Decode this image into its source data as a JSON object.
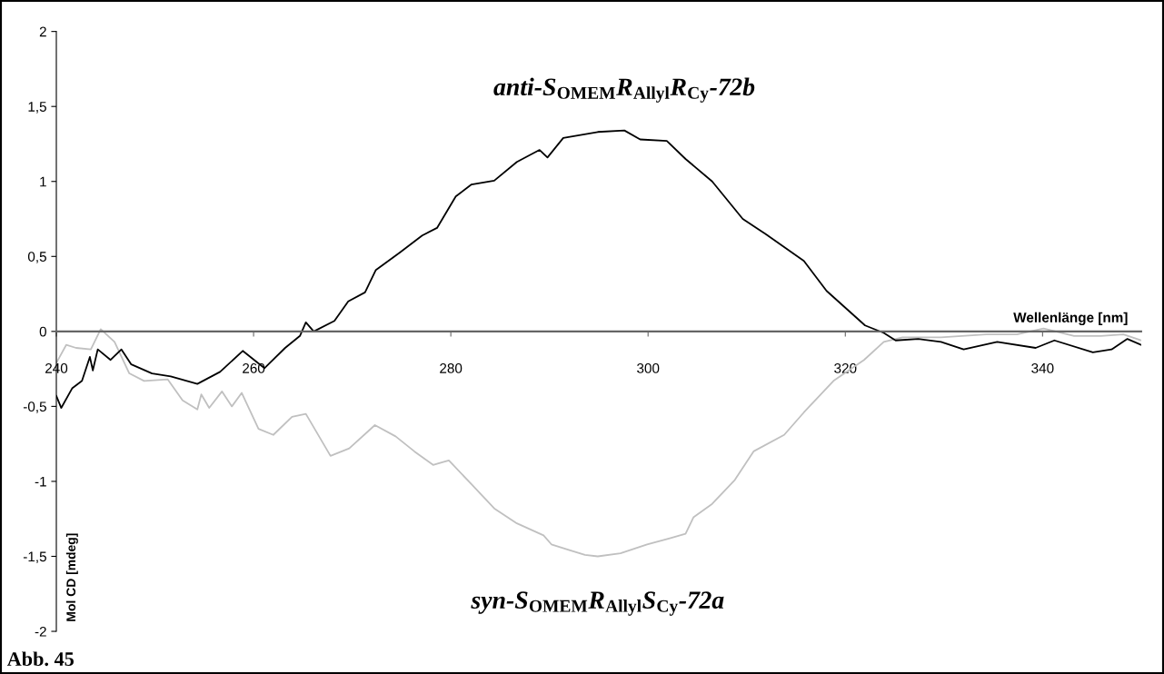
{
  "chart_data": {
    "type": "line",
    "xlabel": "Wellenlänge [nm]",
    "ylabel": "Mol CD [mdeg]",
    "annotations": [
      "Abb. 45"
    ],
    "xlim": [
      240,
      350
    ],
    "xticks": [
      240,
      260,
      280,
      300,
      320,
      340
    ],
    "ylim": [
      -2,
      2
    ],
    "yticks": [
      {
        "value": -2,
        "label": "-2"
      },
      {
        "value": -1.5,
        "label": "-1,5"
      },
      {
        "value": -1,
        "label": "-1"
      },
      {
        "value": -0.5,
        "label": "-0,5"
      },
      0,
      {
        "value": 0.5,
        "label": "0,5"
      },
      1,
      {
        "value": 1.5,
        "label": "1,5"
      },
      2
    ],
    "grid": false,
    "legend": false,
    "marker": "none",
    "line_style": "solid",
    "series": [
      {
        "name": "syn-S$_{OMEM}$R$_{Allyl}$S$_{Cy}$-72a",
        "color": "#c0c0c0",
        "x": [
          240,
          241,
          242,
          243.5,
          244.5,
          245.9,
          247.4,
          248.9,
          251.3,
          252.8,
          254.3,
          254.7,
          255.5,
          256.8,
          257.8,
          258.8,
          260.5,
          262,
          263.9,
          265.3,
          267.8,
          269.7,
          272.3,
          274.4,
          276.3,
          278.2,
          279.8,
          282.1,
          284.4,
          286.7,
          289.4,
          290.2,
          292.1,
          293.6,
          294.9,
          297.2,
          299.9,
          302.2,
          303.8,
          304.6,
          306.5,
          308.8,
          310.7,
          313.8,
          315.8,
          318.8,
          321.9,
          323.9,
          325.8,
          329.7,
          334.3,
          337.4,
          340.1,
          343.2,
          345.9,
          348.2,
          350
        ],
        "values": [
          -0.21,
          -0.09,
          -0.11,
          -0.12,
          0.015,
          -0.07,
          -0.28,
          -0.33,
          -0.32,
          -0.46,
          -0.52,
          -0.42,
          -0.51,
          -0.4,
          -0.5,
          -0.41,
          -0.65,
          -0.69,
          -0.57,
          -0.55,
          -0.83,
          -0.78,
          -0.625,
          -0.7,
          -0.8,
          -0.89,
          -0.86,
          -1.02,
          -1.18,
          -1.28,
          -1.36,
          -1.42,
          -1.46,
          -1.49,
          -1.5,
          -1.48,
          -1.42,
          -1.38,
          -1.35,
          -1.24,
          -1.15,
          -0.99,
          -0.8,
          -0.69,
          -0.54,
          -0.33,
          -0.19,
          -0.07,
          -0.04,
          -0.04,
          -0.02,
          -0.02,
          0.02,
          -0.03,
          -0.03,
          -0.02,
          -0.06
        ]
      },
      {
        "name": "anti-S$_{OMEM}$R$_{Allyl}$R$_{Cy}$-72b",
        "color": "#000000",
        "x": [
          240,
          240.5,
          241.6,
          242.6,
          243.4,
          243.7,
          244.2,
          245.5,
          246.6,
          247.6,
          249.7,
          251.6,
          254.3,
          256.6,
          258.9,
          261.1,
          263.2,
          264.7,
          265.3,
          266.1,
          268.2,
          269.6,
          271.3,
          272.4,
          274.8,
          277.1,
          278.6,
          280.5,
          282.1,
          284.4,
          286.7,
          289,
          289.8,
          291.4,
          294.9,
          297.6,
          299.2,
          301.9,
          303.8,
          306.5,
          309.6,
          311.9,
          315.8,
          318.1,
          322,
          323.9,
          325.1,
          327.4,
          329.7,
          332,
          335.4,
          339.3,
          341.2,
          345.1,
          347,
          348.6,
          350
        ],
        "values": [
          -0.43,
          -0.51,
          -0.38,
          -0.33,
          -0.17,
          -0.26,
          -0.12,
          -0.19,
          -0.12,
          -0.22,
          -0.28,
          -0.3,
          -0.35,
          -0.27,
          -0.13,
          -0.245,
          -0.11,
          -0.03,
          0.06,
          0.0,
          0.07,
          0.2,
          0.26,
          0.41,
          0.525,
          0.64,
          0.69,
          0.9,
          0.98,
          1.005,
          1.13,
          1.21,
          1.16,
          1.29,
          1.33,
          1.34,
          1.28,
          1.27,
          1.15,
          1.0,
          0.75,
          0.65,
          0.47,
          0.27,
          0.04,
          -0.01,
          -0.06,
          -0.05,
          -0.07,
          -0.12,
          -0.07,
          -0.11,
          -0.06,
          -0.14,
          -0.12,
          -0.05,
          -0.09
        ]
      }
    ]
  }
}
